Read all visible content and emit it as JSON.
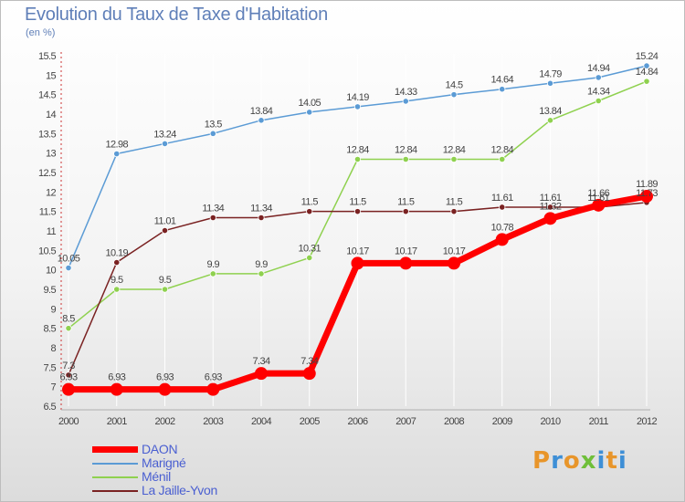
{
  "header": {
    "title": "Evolution du Taux de Taxe d'Habitation",
    "subtitle": "(en %)"
  },
  "logo": {
    "text": "Proxiti",
    "colors": [
      "#e8952a",
      "#3e8fd6",
      "#e8952a",
      "#6fbf3a",
      "#3e8fd6",
      "#e8952a",
      "#3e8fd6"
    ]
  },
  "chart_data": {
    "type": "line",
    "x": [
      "2000",
      "2001",
      "2002",
      "2003",
      "2004",
      "2005",
      "2006",
      "2007",
      "2008",
      "2009",
      "2010",
      "2011",
      "2012"
    ],
    "ylim": [
      6.5,
      15.5
    ],
    "yticks": [
      "6.5",
      "7",
      "7.5",
      "8",
      "8.5",
      "9",
      "9.5",
      "10",
      "10.5",
      "11",
      "11.5",
      "12",
      "12.5",
      "13",
      "13.5",
      "14",
      "14.5",
      "15",
      "15.5"
    ],
    "grid": "vertical",
    "legend_position": "bottom-left",
    "series": [
      {
        "name": "DAON",
        "color": "#ff0000",
        "values": [
          6.93,
          6.93,
          6.93,
          6.93,
          7.34,
          7.34,
          10.17,
          10.17,
          10.17,
          10.78,
          11.32,
          11.66,
          11.89
        ],
        "labels": [
          "6.93",
          "6.93",
          "6.93",
          "6.93",
          "7.34",
          "7.34",
          "10.17",
          "10.17",
          "10.17",
          "10.78",
          "11.32",
          "11.66",
          "11.89"
        ]
      },
      {
        "name": "Marigné",
        "color": "#5b9bd5",
        "values": [
          10.05,
          12.98,
          13.24,
          13.5,
          13.84,
          14.05,
          14.19,
          14.33,
          14.5,
          14.64,
          14.79,
          14.94,
          15.24
        ],
        "labels": [
          "10.05",
          "12.98",
          "13.24",
          "13.5",
          "13.84",
          "14.05",
          "14.19",
          "14.33",
          "14.5",
          "14.64",
          "14.79",
          "14.94",
          "15.24"
        ]
      },
      {
        "name": "Ménil",
        "color": "#8fd14f",
        "values": [
          8.5,
          9.5,
          9.5,
          9.9,
          9.9,
          10.31,
          12.84,
          12.84,
          12.84,
          12.84,
          13.84,
          14.34,
          14.84
        ],
        "labels": [
          "8.5",
          "9.5",
          "9.5",
          "9.9",
          "9.9",
          "10.31",
          "12.84",
          "12.84",
          "12.84",
          "12.84",
          "13.84",
          "14.34",
          "14.84"
        ]
      },
      {
        "name": "La Jaille-Yvon",
        "color": "#7a2222",
        "values": [
          7.3,
          10.19,
          11.01,
          11.34,
          11.34,
          11.5,
          11.5,
          11.5,
          11.5,
          11.61,
          11.61,
          11.61,
          11.73
        ],
        "labels": [
          "7.3",
          "10.19",
          "11.01",
          "11.34",
          "11.34",
          "11.5",
          "11.5",
          "11.5",
          "11.5",
          "11.61",
          "11.61",
          "11.61",
          "11.73"
        ]
      }
    ]
  }
}
